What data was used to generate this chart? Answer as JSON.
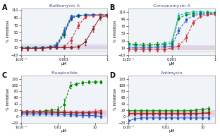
{
  "panels": [
    {
      "label": "A",
      "title": "Bafilomycin A",
      "xlim_log": [
        -6,
        0
      ],
      "xticks": [
        1e-06,
        0.001,
        1
      ],
      "xticklabels": [
        "1x10⁻⁶",
        "0.001",
        "1"
      ],
      "ylim": [
        -10,
        115
      ],
      "yticks": [
        -10,
        10,
        30,
        50,
        70,
        90,
        110
      ],
      "xlabel": "μM",
      "ylabel": "% Inhibition",
      "shaded_bands": [
        {
          "ymin": 5,
          "ymax": 20,
          "color": "#aabbee",
          "alpha": 0.3
        },
        {
          "ymin": 5,
          "ymax": 15,
          "color": "#ffaaaa",
          "alpha": 0.25
        }
      ],
      "series": [
        {
          "color": "#008800",
          "x": [
            1e-06,
            3e-06,
            1e-05,
            3e-05,
            0.0001,
            0.0003,
            0.001,
            0.003,
            0.01,
            0.03,
            0.1,
            0.3,
            1.0
          ],
          "y": [
            10,
            10,
            10,
            10,
            12,
            15,
            50,
            90,
            95,
            97,
            97,
            97,
            97
          ],
          "yerr": [
            3,
            3,
            3,
            3,
            3,
            5,
            8,
            5,
            3,
            3,
            3,
            3,
            3
          ],
          "linestyle": "--"
        },
        {
          "color": "#2255cc",
          "x": [
            1e-06,
            3e-06,
            1e-05,
            3e-05,
            0.0001,
            0.0003,
            0.001,
            0.003,
            0.01,
            0.03,
            0.1,
            0.3,
            1.0
          ],
          "y": [
            9,
            9,
            9,
            10,
            12,
            18,
            55,
            93,
            96,
            97,
            97,
            97,
            97
          ],
          "yerr": [
            3,
            3,
            3,
            3,
            3,
            5,
            8,
            5,
            3,
            3,
            3,
            3,
            3
          ],
          "linestyle": "--"
        },
        {
          "color": "#1144aa",
          "x": [
            1e-06,
            3e-06,
            1e-05,
            3e-05,
            0.0001,
            0.0003,
            0.001,
            0.003,
            0.01,
            0.03,
            0.1,
            0.3,
            1.0
          ],
          "y": [
            8,
            8,
            8,
            9,
            10,
            13,
            45,
            88,
            95,
            97,
            97,
            97,
            97
          ],
          "yerr": [
            3,
            3,
            3,
            3,
            3,
            5,
            8,
            5,
            3,
            3,
            3,
            3,
            3
          ],
          "linestyle": "--"
        },
        {
          "color": "#cc3333",
          "x": [
            1e-06,
            3e-06,
            1e-05,
            3e-05,
            0.0001,
            0.0003,
            0.001,
            0.003,
            0.01,
            0.03,
            0.1,
            0.3,
            1.0
          ],
          "y": [
            8,
            8,
            8,
            8,
            10,
            10,
            12,
            30,
            70,
            92,
            96,
            97,
            97
          ],
          "yerr": [
            4,
            4,
            4,
            4,
            4,
            4,
            5,
            8,
            8,
            5,
            3,
            3,
            3
          ],
          "linestyle": "--"
        },
        {
          "color": "#882222",
          "x": [
            1e-06,
            3e-06,
            1e-05,
            3e-05,
            0.0001,
            0.0003,
            0.001,
            0.003,
            0.01,
            0.03,
            0.1,
            0.3,
            1.0
          ],
          "y": [
            8,
            8,
            8,
            8,
            10,
            10,
            10,
            10,
            12,
            25,
            60,
            90,
            95
          ],
          "yerr": [
            4,
            4,
            4,
            4,
            4,
            4,
            4,
            4,
            5,
            8,
            8,
            5,
            3
          ],
          "linestyle": "-"
        }
      ]
    },
    {
      "label": "B",
      "title": "Concanamycin A",
      "xlim_log": [
        -6,
        0
      ],
      "xticks": [
        1e-06,
        0.001,
        1
      ],
      "xticklabels": [
        "1x10⁻⁶",
        "0.001",
        "1"
      ],
      "ylim": [
        -10,
        120
      ],
      "yticks": [
        -10,
        10,
        30,
        50,
        70,
        90,
        110
      ],
      "xlabel": "μM",
      "ylabel": "% Inhibition",
      "shaded_bands": [
        {
          "ymin": 3,
          "ymax": 18,
          "color": "#aabbee",
          "alpha": 0.35
        },
        {
          "ymin": 3,
          "ymax": 15,
          "color": "#ffaaaa",
          "alpha": 0.25
        }
      ],
      "series": [
        {
          "color": "#00bbbb",
          "x": [
            1e-06,
            3e-06,
            1e-05,
            3e-05,
            0.0001,
            0.0003,
            0.001,
            0.003,
            0.01,
            0.03,
            0.1,
            0.3,
            1.0
          ],
          "y": [
            18,
            18,
            18,
            18,
            20,
            22,
            28,
            100,
            107,
            110,
            110,
            110,
            108
          ],
          "yerr": [
            5,
            5,
            5,
            5,
            5,
            5,
            8,
            5,
            3,
            3,
            3,
            3,
            3
          ],
          "linestyle": "--"
        },
        {
          "color": "#008800",
          "x": [
            1e-06,
            3e-06,
            1e-05,
            3e-05,
            0.0001,
            0.0003,
            0.001,
            0.003,
            0.01,
            0.03,
            0.1,
            0.3,
            1.0
          ],
          "y": [
            22,
            20,
            18,
            18,
            20,
            20,
            22,
            92,
            102,
            105,
            107,
            107,
            107
          ],
          "yerr": [
            5,
            5,
            5,
            5,
            5,
            5,
            8,
            5,
            3,
            3,
            3,
            3,
            3
          ],
          "linestyle": "--"
        },
        {
          "color": "#2255cc",
          "x": [
            1e-06,
            3e-06,
            1e-05,
            3e-05,
            0.0001,
            0.0003,
            0.001,
            0.003,
            0.01,
            0.03,
            0.1,
            0.3,
            1.0
          ],
          "y": [
            10,
            10,
            10,
            10,
            12,
            13,
            15,
            58,
            87,
            100,
            103,
            104,
            104
          ],
          "yerr": [
            5,
            5,
            5,
            5,
            5,
            5,
            8,
            8,
            5,
            3,
            3,
            3,
            3
          ],
          "linestyle": "--"
        },
        {
          "color": "#cc3333",
          "x": [
            1e-06,
            3e-06,
            1e-05,
            3e-05,
            0.0001,
            0.0003,
            0.001,
            0.003,
            0.01,
            0.03,
            0.1,
            0.3,
            1.0
          ],
          "y": [
            5,
            5,
            5,
            5,
            5,
            5,
            10,
            15,
            38,
            80,
            97,
            102,
            104
          ],
          "yerr": [
            5,
            5,
            5,
            5,
            5,
            5,
            5,
            8,
            8,
            5,
            3,
            3,
            3
          ],
          "linestyle": "--"
        }
      ]
    },
    {
      "label": "C",
      "title": "Fluopicolide",
      "xlim_log": [
        -5,
        2
      ],
      "xticks": [
        1e-05,
        0.01,
        10
      ],
      "xticklabels": [
        "1x10⁻⁵",
        "0.01",
        "10"
      ],
      "ylim": [
        -20,
        130
      ],
      "yticks": [
        -20,
        0,
        20,
        40,
        60,
        80,
        100,
        120
      ],
      "xlabel": "μM",
      "ylabel": "% Inhibition",
      "shaded_bands": [
        {
          "ymin": 0,
          "ymax": 20,
          "color": "#aabbee",
          "alpha": 0.3
        },
        {
          "ymin": 5,
          "ymax": 18,
          "color": "#ffaaaa",
          "alpha": 0.3
        }
      ],
      "series": [
        {
          "color": "#008800",
          "x": [
            1e-05,
            3e-05,
            0.0001,
            0.0003,
            0.001,
            0.003,
            0.01,
            0.03,
            0.1,
            0.3,
            1,
            3,
            10,
            30
          ],
          "y": [
            12,
            15,
            15,
            15,
            18,
            20,
            22,
            38,
            100,
            103,
            107,
            110,
            110,
            110
          ],
          "yerr": [
            5,
            5,
            5,
            5,
            5,
            5,
            10,
            18,
            10,
            5,
            5,
            5,
            5,
            5
          ],
          "linestyle": "--"
        },
        {
          "color": "#cc3333",
          "x": [
            1e-05,
            3e-05,
            0.0001,
            0.0003,
            0.001,
            0.003,
            0.01,
            0.03,
            0.1,
            0.3,
            1,
            3,
            10,
            30
          ],
          "y": [
            15,
            15,
            15,
            15,
            15,
            15,
            14,
            14,
            13,
            13,
            13,
            13,
            16,
            18
          ],
          "yerr": [
            5,
            5,
            5,
            5,
            5,
            5,
            5,
            5,
            5,
            5,
            5,
            5,
            5,
            5
          ],
          "linestyle": "-"
        },
        {
          "color": "#2255cc",
          "x": [
            1e-05,
            3e-05,
            0.0001,
            0.0003,
            0.001,
            0.003,
            0.01,
            0.03,
            0.1,
            0.3,
            1,
            3,
            10,
            30
          ],
          "y": [
            8,
            8,
            8,
            8,
            8,
            8,
            7,
            6,
            5,
            4,
            3,
            3,
            2,
            0
          ],
          "yerr": [
            5,
            5,
            5,
            5,
            5,
            5,
            5,
            5,
            5,
            5,
            5,
            5,
            5,
            5
          ],
          "linestyle": "-"
        },
        {
          "color": "#882222",
          "x": [
            1e-05,
            3e-05,
            0.0001,
            0.0003,
            0.001,
            0.003,
            0.01,
            0.03,
            0.1,
            0.3,
            1,
            3,
            10,
            30
          ],
          "y": [
            13,
            13,
            13,
            13,
            13,
            13,
            12,
            12,
            11,
            11,
            11,
            11,
            11,
            11
          ],
          "yerr": [
            5,
            5,
            5,
            5,
            5,
            5,
            5,
            5,
            5,
            5,
            5,
            5,
            5,
            5
          ],
          "linestyle": "-"
        }
      ]
    },
    {
      "label": "D",
      "title": "Antimycin",
      "xlim_log": [
        -5,
        2
      ],
      "xticks": [
        1e-05,
        0.01,
        10
      ],
      "xticklabels": [
        "1x10⁻⁵",
        "0.01",
        "10"
      ],
      "ylim": [
        -20,
        130
      ],
      "yticks": [
        -20,
        0,
        20,
        40,
        60,
        80,
        100,
        120
      ],
      "xlabel": "μM",
      "ylabel": "% Inhibition",
      "shaded_bands": [
        {
          "ymin": 0,
          "ymax": 20,
          "color": "#aabbee",
          "alpha": 0.3
        },
        {
          "ymin": 5,
          "ymax": 18,
          "color": "#ffaaaa",
          "alpha": 0.3
        }
      ],
      "series": [
        {
          "color": "#008800",
          "x": [
            1e-05,
            3e-05,
            0.0001,
            0.0003,
            0.001,
            0.003,
            0.01,
            0.03,
            0.1,
            0.3,
            1,
            3,
            10,
            30
          ],
          "y": [
            18,
            18,
            18,
            18,
            18,
            18,
            18,
            18,
            18,
            18,
            18,
            20,
            22,
            25
          ],
          "yerr": [
            5,
            5,
            5,
            5,
            5,
            5,
            5,
            5,
            5,
            5,
            5,
            5,
            5,
            5
          ],
          "linestyle": "-"
        },
        {
          "color": "#cc3333",
          "x": [
            1e-05,
            3e-05,
            0.0001,
            0.0003,
            0.001,
            0.003,
            0.01,
            0.03,
            0.1,
            0.3,
            1,
            3,
            10,
            30
          ],
          "y": [
            10,
            10,
            10,
            10,
            10,
            10,
            10,
            10,
            10,
            10,
            10,
            10,
            10,
            12
          ],
          "yerr": [
            5,
            5,
            5,
            5,
            5,
            5,
            5,
            5,
            5,
            5,
            5,
            5,
            5,
            5
          ],
          "linestyle": "-"
        },
        {
          "color": "#2255cc",
          "x": [
            1e-05,
            3e-05,
            0.0001,
            0.0003,
            0.001,
            0.003,
            0.01,
            0.03,
            0.1,
            0.3,
            1,
            3,
            10,
            30
          ],
          "y": [
            -15,
            -8,
            -5,
            -5,
            -5,
            -5,
            -5,
            -5,
            -5,
            -5,
            -5,
            -5,
            -5,
            -5
          ],
          "yerr": [
            5,
            5,
            5,
            5,
            5,
            5,
            5,
            5,
            5,
            5,
            5,
            5,
            5,
            5
          ],
          "linestyle": "-"
        },
        {
          "color": "#882222",
          "x": [
            1e-05,
            3e-05,
            0.0001,
            0.0003,
            0.001,
            0.003,
            0.01,
            0.03,
            0.1,
            0.3,
            1,
            3,
            10,
            30
          ],
          "y": [
            8,
            8,
            8,
            8,
            8,
            8,
            8,
            8,
            8,
            8,
            8,
            8,
            10,
            10
          ],
          "yerr": [
            5,
            5,
            5,
            5,
            5,
            5,
            5,
            5,
            5,
            5,
            5,
            5,
            5,
            5
          ],
          "linestyle": "-"
        }
      ]
    }
  ],
  "background_color": "#f0f4f8",
  "fig_background": "#ffffff"
}
